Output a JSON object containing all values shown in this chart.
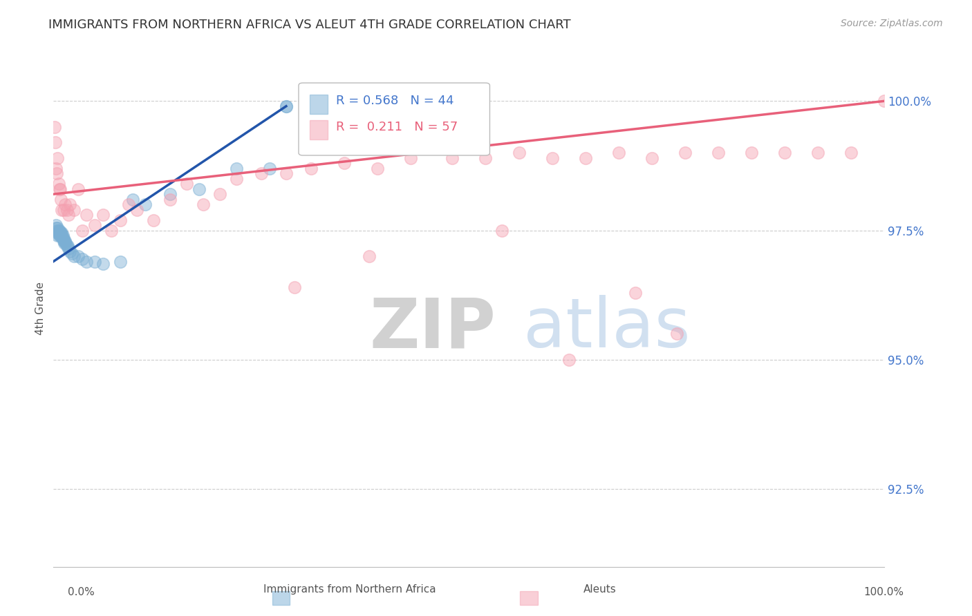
{
  "title": "IMMIGRANTS FROM NORTHERN AFRICA VS ALEUT 4TH GRADE CORRELATION CHART",
  "source": "Source: ZipAtlas.com",
  "ylabel": "4th Grade",
  "blue_R": 0.568,
  "blue_N": 44,
  "pink_R": 0.211,
  "pink_N": 57,
  "blue_color": "#7BAFD4",
  "pink_color": "#F4A0B0",
  "blue_line_color": "#2255AA",
  "pink_line_color": "#E8607A",
  "ytick_labels": [
    "100.0%",
    "97.5%",
    "95.0%",
    "92.5%"
  ],
  "ytick_values": [
    1.0,
    0.975,
    0.95,
    0.925
  ],
  "xlim": [
    0.0,
    1.0
  ],
  "ylim": [
    0.91,
    1.01
  ],
  "grid_color": "#CCCCCC",
  "background_color": "#FFFFFF",
  "blue_scatter_x": [
    0.003,
    0.003,
    0.004,
    0.004,
    0.005,
    0.005,
    0.006,
    0.006,
    0.007,
    0.007,
    0.008,
    0.008,
    0.009,
    0.009,
    0.01,
    0.01,
    0.011,
    0.011,
    0.012,
    0.012,
    0.013,
    0.013,
    0.014,
    0.015,
    0.016,
    0.017,
    0.018,
    0.02,
    0.022,
    0.025,
    0.03,
    0.035,
    0.04,
    0.05,
    0.06,
    0.08,
    0.095,
    0.11,
    0.14,
    0.175,
    0.22,
    0.26,
    0.28,
    0.28
  ],
  "blue_scatter_y": [
    0.9755,
    0.976,
    0.9745,
    0.975,
    0.9755,
    0.974,
    0.975,
    0.9745,
    0.974,
    0.975,
    0.974,
    0.9745,
    0.974,
    0.9745,
    0.974,
    0.9745,
    0.9735,
    0.974,
    0.973,
    0.9735,
    0.973,
    0.9725,
    0.973,
    0.9725,
    0.972,
    0.972,
    0.9715,
    0.971,
    0.9705,
    0.97,
    0.97,
    0.9695,
    0.969,
    0.969,
    0.9685,
    0.969,
    0.981,
    0.98,
    0.982,
    0.983,
    0.987,
    0.987,
    0.999,
    0.999
  ],
  "pink_scatter_x": [
    0.001,
    0.002,
    0.003,
    0.004,
    0.005,
    0.006,
    0.007,
    0.008,
    0.009,
    0.01,
    0.012,
    0.014,
    0.016,
    0.018,
    0.02,
    0.025,
    0.03,
    0.035,
    0.04,
    0.05,
    0.06,
    0.07,
    0.08,
    0.09,
    0.1,
    0.12,
    0.14,
    0.16,
    0.18,
    0.2,
    0.22,
    0.25,
    0.28,
    0.31,
    0.35,
    0.39,
    0.43,
    0.48,
    0.52,
    0.56,
    0.6,
    0.64,
    0.68,
    0.72,
    0.76,
    0.8,
    0.84,
    0.88,
    0.92,
    0.96,
    1.0,
    0.54,
    0.38,
    0.29,
    0.62,
    0.7,
    0.75
  ],
  "pink_scatter_y": [
    0.995,
    0.992,
    0.987,
    0.986,
    0.989,
    0.984,
    0.983,
    0.983,
    0.981,
    0.979,
    0.979,
    0.98,
    0.979,
    0.978,
    0.98,
    0.979,
    0.983,
    0.975,
    0.978,
    0.976,
    0.978,
    0.975,
    0.977,
    0.98,
    0.979,
    0.977,
    0.981,
    0.984,
    0.98,
    0.982,
    0.985,
    0.986,
    0.986,
    0.987,
    0.988,
    0.987,
    0.989,
    0.989,
    0.989,
    0.99,
    0.989,
    0.989,
    0.99,
    0.989,
    0.99,
    0.99,
    0.99,
    0.99,
    0.99,
    0.99,
    1.0,
    0.975,
    0.97,
    0.964,
    0.95,
    0.963,
    0.955
  ],
  "blue_line_x0": 0.0,
  "blue_line_x1": 0.28,
  "blue_line_y0": 0.969,
  "blue_line_y1": 0.999,
  "pink_line_x0": 0.0,
  "pink_line_x1": 1.0,
  "pink_line_y0": 0.982,
  "pink_line_y1": 1.0
}
